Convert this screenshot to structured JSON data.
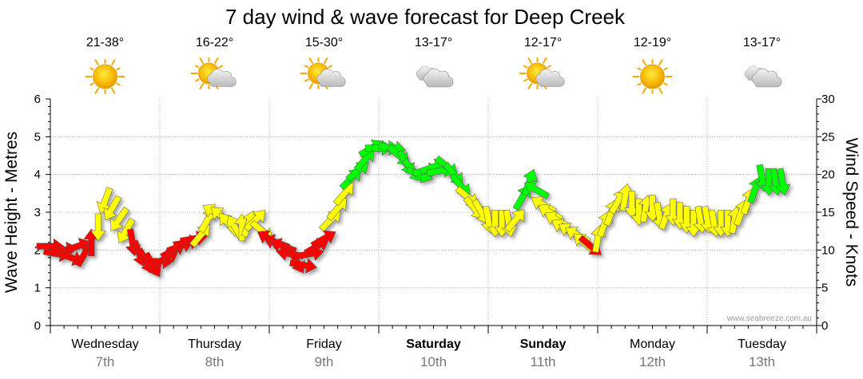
{
  "chart_data": {
    "type": "scatter",
    "title": "7 day wind & wave forecast for Deep Creek",
    "ylabel_left": "Wave Height - Metres",
    "ylabel_right": "Wind Speed - Knots",
    "ylim_left": [
      0,
      6
    ],
    "ylim_right": [
      0,
      30
    ],
    "yticks_left": [
      "0",
      "1",
      "2",
      "3",
      "4",
      "5",
      "6"
    ],
    "yticks_right": [
      "0",
      "5",
      "10",
      "15",
      "20",
      "25",
      "30"
    ],
    "grid": true,
    "credit": "www.seabreeze.com.au",
    "days": [
      {
        "name": "Wednesday",
        "date": "7th",
        "bold": false,
        "temp": "21-38°",
        "icon": "sun-icon"
      },
      {
        "name": "Thursday",
        "date": "8th",
        "bold": false,
        "temp": "16-22°",
        "icon": "sun-cloud-icon"
      },
      {
        "name": "Friday",
        "date": "9th",
        "bold": false,
        "temp": "15-30°",
        "icon": "sun-cloud-icon"
      },
      {
        "name": "Saturday",
        "date": "10th",
        "bold": true,
        "temp": "13-17°",
        "icon": "cloud-icon"
      },
      {
        "name": "Sunday",
        "date": "11th",
        "bold": true,
        "temp": "12-17°",
        "icon": "sun-cloud-icon"
      },
      {
        "name": "Monday",
        "date": "12th",
        "bold": false,
        "temp": "12-19°",
        "icon": "sun-icon"
      },
      {
        "name": "Tuesday",
        "date": "13th",
        "bold": false,
        "temp": "13-17°",
        "icon": "cloud-icon"
      }
    ],
    "wind_series": {
      "name": "Wind Speed (Knots) & direction",
      "points": [
        {
          "x": "Wed 00:00",
          "speed": 10.5,
          "dir": 90,
          "color": "red"
        },
        {
          "x": "Wed 01:30",
          "speed": 9.5,
          "dir": 100,
          "color": "red"
        },
        {
          "x": "Wed 03:00",
          "speed": 10,
          "dir": 80,
          "color": "red"
        },
        {
          "x": "Wed 04:30",
          "speed": 9,
          "dir": 110,
          "color": "red"
        },
        {
          "x": "Wed 06:00",
          "speed": 10.5,
          "dir": 70,
          "color": "red"
        },
        {
          "x": "Wed 07:30",
          "speed": 9.5,
          "dir": 30,
          "color": "red"
        },
        {
          "x": "Wed 09:00",
          "speed": 11,
          "dir": 0,
          "color": "red"
        },
        {
          "x": "Wed 10:30",
          "speed": 13,
          "dir": 180,
          "color": "yellow"
        },
        {
          "x": "Wed 12:00",
          "speed": 16.5,
          "dir": 200,
          "color": "yellow"
        },
        {
          "x": "Wed 13:30",
          "speed": 15.5,
          "dir": 210,
          "color": "yellow"
        },
        {
          "x": "Wed 15:00",
          "speed": 14,
          "dir": 215,
          "color": "yellow"
        },
        {
          "x": "Wed 16:30",
          "speed": 12.5,
          "dir": 210,
          "color": "yellow"
        },
        {
          "x": "Wed 18:00",
          "speed": 11,
          "dir": 170,
          "color": "red"
        },
        {
          "x": "Wed 19:30",
          "speed": 9.5,
          "dir": 160,
          "color": "red"
        },
        {
          "x": "Wed 21:00",
          "speed": 8.5,
          "dir": 150,
          "color": "red"
        },
        {
          "x": "Wed 22:30",
          "speed": 8,
          "dir": 150,
          "color": "red"
        },
        {
          "x": "Thu 00:00",
          "speed": 8.5,
          "dir": 90,
          "color": "red"
        },
        {
          "x": "Thu 01:30",
          "speed": 9,
          "dir": 60,
          "color": "red"
        },
        {
          "x": "Thu 03:00",
          "speed": 10,
          "dir": 60,
          "color": "red"
        },
        {
          "x": "Thu 04:30",
          "speed": 10.5,
          "dir": 70,
          "color": "red"
        },
        {
          "x": "Thu 06:00",
          "speed": 11,
          "dir": 80,
          "color": "red"
        },
        {
          "x": "Thu 07:30",
          "speed": 11.5,
          "dir": 80,
          "color": "red"
        },
        {
          "x": "Thu 09:00",
          "speed": 12,
          "dir": 40,
          "color": "yellow"
        },
        {
          "x": "Thu 10:30",
          "speed": 14,
          "dir": 30,
          "color": "yellow"
        },
        {
          "x": "Thu 12:00",
          "speed": 15,
          "dir": 300,
          "color": "yellow"
        },
        {
          "x": "Thu 13:30",
          "speed": 14.5,
          "dir": 310,
          "color": "yellow"
        },
        {
          "x": "Thu 15:00",
          "speed": 13.5,
          "dir": 320,
          "color": "yellow"
        },
        {
          "x": "Thu 16:30",
          "speed": 13,
          "dir": 330,
          "color": "yellow"
        },
        {
          "x": "Thu 18:00",
          "speed": 13,
          "dir": 0,
          "color": "yellow"
        },
        {
          "x": "Thu 19:30",
          "speed": 13.5,
          "dir": 20,
          "color": "yellow"
        },
        {
          "x": "Thu 21:00",
          "speed": 14,
          "dir": 45,
          "color": "yellow"
        },
        {
          "x": "Thu 22:30",
          "speed": 12.5,
          "dir": 130,
          "color": "yellow"
        },
        {
          "x": "Fri 00:00",
          "speed": 11.5,
          "dir": 300,
          "color": "red"
        },
        {
          "x": "Fri 01:30",
          "speed": 11,
          "dir": 290,
          "color": "red"
        },
        {
          "x": "Fri 03:00",
          "speed": 10.5,
          "dir": 290,
          "color": "red"
        },
        {
          "x": "Fri 04:30",
          "speed": 9.5,
          "dir": 280,
          "color": "red"
        },
        {
          "x": "Fri 06:00",
          "speed": 8.5,
          "dir": 150,
          "color": "red"
        },
        {
          "x": "Fri 07:30",
          "speed": 8,
          "dir": 100,
          "color": "red"
        },
        {
          "x": "Fri 09:00",
          "speed": 9.5,
          "dir": 80,
          "color": "red"
        },
        {
          "x": "Fri 10:30",
          "speed": 10.5,
          "dir": 60,
          "color": "red"
        },
        {
          "x": "Fri 12:00",
          "speed": 11.5,
          "dir": 60,
          "color": "red"
        },
        {
          "x": "Fri 13:30",
          "speed": 14,
          "dir": 45,
          "color": "yellow"
        },
        {
          "x": "Fri 15:00",
          "speed": 15.5,
          "dir": 40,
          "color": "yellow"
        },
        {
          "x": "Fri 16:30",
          "speed": 17.5,
          "dir": 40,
          "color": "yellow"
        },
        {
          "x": "Fri 18:00",
          "speed": 19.5,
          "dir": 45,
          "color": "green"
        },
        {
          "x": "Fri 19:30",
          "speed": 20.5,
          "dir": 50,
          "color": "green"
        },
        {
          "x": "Fri 21:00",
          "speed": 22,
          "dir": 40,
          "color": "green"
        },
        {
          "x": "Fri 22:30",
          "speed": 23.5,
          "dir": 60,
          "color": "green"
        },
        {
          "x": "Sat 00:00",
          "speed": 23.5,
          "dir": 90,
          "color": "green"
        },
        {
          "x": "Sat 01:30",
          "speed": 23.5,
          "dir": 90,
          "color": "green"
        },
        {
          "x": "Sat 03:00",
          "speed": 23.5,
          "dir": 100,
          "color": "green"
        },
        {
          "x": "Sat 04:30",
          "speed": 22.5,
          "dir": 130,
          "color": "green"
        },
        {
          "x": "Sat 06:00",
          "speed": 21.5,
          "dir": 150,
          "color": "green"
        },
        {
          "x": "Sat 07:30",
          "speed": 20.5,
          "dir": 140,
          "color": "green"
        },
        {
          "x": "Sat 09:00",
          "speed": 20,
          "dir": 110,
          "color": "green"
        },
        {
          "x": "Sat 10:30",
          "speed": 20.5,
          "dir": 80,
          "color": "green"
        },
        {
          "x": "Sat 12:00",
          "speed": 21,
          "dir": 70,
          "color": "green"
        },
        {
          "x": "Sat 13:30",
          "speed": 20.5,
          "dir": 80,
          "color": "green"
        },
        {
          "x": "Sat 15:00",
          "speed": 21,
          "dir": 130,
          "color": "green"
        },
        {
          "x": "Sat 16:30",
          "speed": 20,
          "dir": 140,
          "color": "green"
        },
        {
          "x": "Sat 18:00",
          "speed": 18.5,
          "dir": 140,
          "color": "green"
        },
        {
          "x": "Sat 19:30",
          "speed": 17,
          "dir": 130,
          "color": "yellow"
        },
        {
          "x": "Sat 21:00",
          "speed": 15.5,
          "dir": 140,
          "color": "yellow"
        },
        {
          "x": "Sat 22:30",
          "speed": 15,
          "dir": 150,
          "color": "yellow"
        },
        {
          "x": "Sun 00:00",
          "speed": 14,
          "dir": 170,
          "color": "yellow"
        },
        {
          "x": "Sun 01:30",
          "speed": 13.5,
          "dir": 180,
          "color": "yellow"
        },
        {
          "x": "Sun 03:00",
          "speed": 13.5,
          "dir": 180,
          "color": "yellow"
        },
        {
          "x": "Sun 04:30",
          "speed": 13.5,
          "dir": 170,
          "color": "yellow"
        },
        {
          "x": "Sun 06:00",
          "speed": 14,
          "dir": 40,
          "color": "yellow"
        },
        {
          "x": "Sun 07:30",
          "speed": 17,
          "dir": 30,
          "color": "green"
        },
        {
          "x": "Sun 09:00",
          "speed": 19,
          "dir": 20,
          "color": "green"
        },
        {
          "x": "Sun 10:30",
          "speed": 18,
          "dir": 300,
          "color": "green"
        },
        {
          "x": "Sun 12:00",
          "speed": 16,
          "dir": 300,
          "color": "yellow"
        },
        {
          "x": "Sun 13:30",
          "speed": 15,
          "dir": 300,
          "color": "yellow"
        },
        {
          "x": "Sun 15:00",
          "speed": 14,
          "dir": 300,
          "color": "yellow"
        },
        {
          "x": "Sun 16:30",
          "speed": 13,
          "dir": 300,
          "color": "yellow"
        },
        {
          "x": "Sun 18:00",
          "speed": 12.5,
          "dir": 300,
          "color": "yellow"
        },
        {
          "x": "Sun 19:30",
          "speed": 12,
          "dir": 300,
          "color": "yellow"
        },
        {
          "x": "Sun 21:00",
          "speed": 11,
          "dir": 310,
          "color": "yellow"
        },
        {
          "x": "Sun 22:30",
          "speed": 10.5,
          "dir": 130,
          "color": "red"
        },
        {
          "x": "Mon 00:00",
          "speed": 11.5,
          "dir": 10,
          "color": "yellow"
        },
        {
          "x": "Mon 01:30",
          "speed": 13.5,
          "dir": 20,
          "color": "yellow"
        },
        {
          "x": "Mon 03:00",
          "speed": 15,
          "dir": 20,
          "color": "yellow"
        },
        {
          "x": "Mon 04:30",
          "speed": 16.5,
          "dir": 30,
          "color": "yellow"
        },
        {
          "x": "Mon 06:00",
          "speed": 17,
          "dir": 10,
          "color": "yellow"
        },
        {
          "x": "Mon 07:30",
          "speed": 16,
          "dir": 180,
          "color": "yellow"
        },
        {
          "x": "Mon 09:00",
          "speed": 15,
          "dir": 180,
          "color": "yellow"
        },
        {
          "x": "Mon 10:30",
          "speed": 15.5,
          "dir": 10,
          "color": "yellow"
        },
        {
          "x": "Mon 12:00",
          "speed": 15.5,
          "dir": 180,
          "color": "yellow"
        },
        {
          "x": "Mon 13:30",
          "speed": 14.5,
          "dir": 170,
          "color": "yellow"
        },
        {
          "x": "Mon 15:00",
          "speed": 14.5,
          "dir": 20,
          "color": "yellow"
        },
        {
          "x": "Mon 16:30",
          "speed": 15,
          "dir": 180,
          "color": "yellow"
        },
        {
          "x": "Mon 18:00",
          "speed": 14.5,
          "dir": 180,
          "color": "yellow"
        },
        {
          "x": "Mon 19:30",
          "speed": 14,
          "dir": 180,
          "color": "yellow"
        },
        {
          "x": "Mon 21:00",
          "speed": 13.5,
          "dir": 180,
          "color": "yellow"
        },
        {
          "x": "Mon 22:30",
          "speed": 14,
          "dir": 170,
          "color": "yellow"
        },
        {
          "x": "Tue 00:00",
          "speed": 14,
          "dir": 170,
          "color": "yellow"
        },
        {
          "x": "Tue 01:30",
          "speed": 13.5,
          "dir": 170,
          "color": "yellow"
        },
        {
          "x": "Tue 03:00",
          "speed": 13.5,
          "dir": 180,
          "color": "yellow"
        },
        {
          "x": "Tue 04:30",
          "speed": 13.5,
          "dir": 180,
          "color": "yellow"
        },
        {
          "x": "Tue 06:00",
          "speed": 14,
          "dir": 10,
          "color": "yellow"
        },
        {
          "x": "Tue 07:30",
          "speed": 15,
          "dir": 20,
          "color": "yellow"
        },
        {
          "x": "Tue 09:00",
          "speed": 16.5,
          "dir": 20,
          "color": "yellow"
        },
        {
          "x": "Tue 10:30",
          "speed": 18,
          "dir": 20,
          "color": "green"
        },
        {
          "x": "Tue 12:00",
          "speed": 19.5,
          "dir": 170,
          "color": "green"
        },
        {
          "x": "Tue 13:30",
          "speed": 19,
          "dir": 180,
          "color": "green"
        },
        {
          "x": "Tue 15:00",
          "speed": 19,
          "dir": 170,
          "color": "green"
        },
        {
          "x": "Tue 16:30",
          "speed": 19,
          "dir": 170,
          "color": "green"
        }
      ]
    },
    "colors": {
      "red": "#ff0000",
      "yellow": "#ffff00",
      "green": "#00ff00",
      "grid": "#999999"
    }
  }
}
